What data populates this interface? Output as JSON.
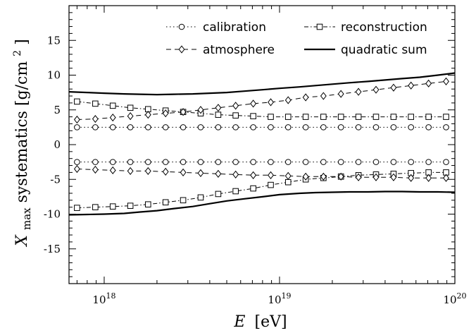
{
  "chart_data": {
    "type": "line",
    "xscale": "log",
    "xlim": [
      6.3e+17,
      1e+20
    ],
    "ylim": [
      -20,
      20
    ],
    "x_ticks": [
      1e+18,
      1e+19,
      1e+20
    ],
    "x_tick_labels": [
      {
        "base": "10",
        "exp": "18"
      },
      {
        "base": "10",
        "exp": "19"
      },
      {
        "base": "10",
        "exp": "20"
      }
    ],
    "y_ticks": [
      15,
      10,
      5,
      0,
      -5,
      -10,
      -15
    ],
    "y_tick_labels": [
      "15",
      "10",
      "5",
      "0",
      "-5",
      "-10",
      "-15"
    ],
    "xlabel": {
      "var": "E",
      "unit": "[eV]"
    },
    "ylabel": {
      "var": "X",
      "sub": "max",
      "text": " systematics [g/cm",
      "sup": "2",
      "end": "]"
    },
    "legend_position": "top-right",
    "legend_columns": 2,
    "series": [
      {
        "name": "calibration",
        "style": "dotted",
        "marker": "circle",
        "branches": [
          {
            "x": [
              7e+17,
              8.9e+17,
              1.12e+18,
              1.41e+18,
              1.78e+18,
              2.24e+18,
              2.82e+18,
              3.55e+18,
              4.47e+18,
              5.62e+18,
              7.08e+18,
              8.91e+18,
              1.12e+19,
              1.41e+19,
              1.78e+19,
              2.24e+19,
              2.82e+19,
              3.55e+19,
              4.47e+19,
              5.62e+19,
              7.08e+19,
              8.91e+19
            ],
            "y": [
              2.5,
              2.5,
              2.5,
              2.5,
              2.5,
              2.5,
              2.5,
              2.5,
              2.5,
              2.5,
              2.5,
              2.5,
              2.5,
              2.5,
              2.5,
              2.5,
              2.5,
              2.5,
              2.5,
              2.5,
              2.5,
              2.5
            ]
          },
          {
            "x": [
              7e+17,
              8.9e+17,
              1.12e+18,
              1.41e+18,
              1.78e+18,
              2.24e+18,
              2.82e+18,
              3.55e+18,
              4.47e+18,
              5.62e+18,
              7.08e+18,
              8.91e+18,
              1.12e+19,
              1.41e+19,
              1.78e+19,
              2.24e+19,
              2.82e+19,
              3.55e+19,
              4.47e+19,
              5.62e+19,
              7.08e+19,
              8.91e+19
            ],
            "y": [
              -2.5,
              -2.5,
              -2.5,
              -2.5,
              -2.5,
              -2.5,
              -2.5,
              -2.5,
              -2.5,
              -2.5,
              -2.5,
              -2.5,
              -2.5,
              -2.5,
              -2.5,
              -2.5,
              -2.5,
              -2.5,
              -2.5,
              -2.5,
              -2.5,
              -2.5
            ]
          }
        ]
      },
      {
        "name": "reconstruction",
        "style": "dashdot",
        "marker": "square",
        "branches": [
          {
            "x": [
              7e+17,
              8.9e+17,
              1.12e+18,
              1.41e+18,
              1.78e+18,
              2.24e+18,
              2.82e+18,
              3.55e+18,
              4.47e+18,
              5.62e+18,
              7.08e+18,
              8.91e+18,
              1.12e+19,
              1.41e+19,
              1.78e+19,
              2.24e+19,
              2.82e+19,
              3.55e+19,
              4.47e+19,
              5.62e+19,
              7.08e+19,
              8.91e+19
            ],
            "y": [
              6.2,
              5.9,
              5.6,
              5.3,
              5.1,
              4.9,
              4.7,
              4.5,
              4.3,
              4.2,
              4.1,
              4.0,
              4.0,
              4.0,
              4.0,
              4.0,
              4.0,
              4.0,
              4.0,
              4.0,
              4.0,
              4.0
            ]
          },
          {
            "x": [
              7e+17,
              8.9e+17,
              1.12e+18,
              1.41e+18,
              1.78e+18,
              2.24e+18,
              2.82e+18,
              3.55e+18,
              4.47e+18,
              5.62e+18,
              7.08e+18,
              8.91e+18,
              1.12e+19,
              1.41e+19,
              1.78e+19,
              2.24e+19,
              2.82e+19,
              3.55e+19,
              4.47e+19,
              5.62e+19,
              7.08e+19,
              8.91e+19
            ],
            "y": [
              -9.1,
              -9.0,
              -8.9,
              -8.8,
              -8.6,
              -8.3,
              -8.0,
              -7.6,
              -7.1,
              -6.7,
              -6.3,
              -5.8,
              -5.4,
              -5.0,
              -4.8,
              -4.6,
              -4.4,
              -4.3,
              -4.2,
              -4.1,
              -4.0,
              -4.0
            ]
          }
        ]
      },
      {
        "name": "atmosphere",
        "style": "dashed",
        "marker": "diamond",
        "branches": [
          {
            "x": [
              7e+17,
              8.9e+17,
              1.12e+18,
              1.41e+18,
              1.78e+18,
              2.24e+18,
              2.82e+18,
              3.55e+18,
              4.47e+18,
              5.62e+18,
              7.08e+18,
              8.91e+18,
              1.12e+19,
              1.41e+19,
              1.78e+19,
              2.24e+19,
              2.82e+19,
              3.55e+19,
              4.47e+19,
              5.62e+19,
              7.08e+19,
              8.91e+19
            ],
            "y": [
              3.6,
              3.7,
              3.9,
              4.1,
              4.3,
              4.5,
              4.7,
              5.0,
              5.3,
              5.6,
              5.9,
              6.1,
              6.4,
              6.8,
              7.0,
              7.3,
              7.6,
              7.9,
              8.2,
              8.5,
              8.8,
              9.1
            ]
          },
          {
            "x": [
              7e+17,
              8.9e+17,
              1.12e+18,
              1.41e+18,
              1.78e+18,
              2.24e+18,
              2.82e+18,
              3.55e+18,
              4.47e+18,
              5.62e+18,
              7.08e+18,
              8.91e+18,
              1.12e+19,
              1.41e+19,
              1.78e+19,
              2.24e+19,
              2.82e+19,
              3.55e+19,
              4.47e+19,
              5.62e+19,
              7.08e+19,
              8.91e+19
            ],
            "y": [
              -3.5,
              -3.6,
              -3.7,
              -3.8,
              -3.8,
              -3.9,
              -4.0,
              -4.1,
              -4.2,
              -4.3,
              -4.4,
              -4.4,
              -4.5,
              -4.6,
              -4.6,
              -4.6,
              -4.7,
              -4.7,
              -4.7,
              -4.8,
              -4.8,
              -4.8
            ]
          }
        ]
      },
      {
        "name": "quadratic sum",
        "style": "solid",
        "marker": "none",
        "branches": [
          {
            "x": [
              6.3e+17,
              8e+17,
              1e+18,
              1.3e+18,
              1.6e+18,
              2e+18,
              2.5e+18,
              3.2e+18,
              4e+18,
              5e+18,
              6.3e+18,
              8e+18,
              1e+19,
              1.3e+19,
              1.6e+19,
              2e+19,
              2.5e+19,
              3.2e+19,
              4e+19,
              5e+19,
              6.3e+19,
              8e+19,
              1e+20
            ],
            "y": [
              7.6,
              7.5,
              7.4,
              7.3,
              7.25,
              7.2,
              7.25,
              7.3,
              7.4,
              7.5,
              7.7,
              7.9,
              8.1,
              8.3,
              8.5,
              8.7,
              8.9,
              9.1,
              9.3,
              9.5,
              9.7,
              10.0,
              10.3
            ]
          },
          {
            "x": [
              6.3e+17,
              8e+17,
              1e+18,
              1.3e+18,
              1.6e+18,
              2e+18,
              2.5e+18,
              3.2e+18,
              4e+18,
              5e+18,
              6.3e+18,
              8e+18,
              1e+19,
              1.3e+19,
              1.6e+19,
              2e+19,
              2.5e+19,
              3.2e+19,
              4e+19,
              5e+19,
              6.3e+19,
              8e+19,
              1e+20
            ],
            "y": [
              -10.1,
              -10.05,
              -10.0,
              -9.9,
              -9.7,
              -9.5,
              -9.2,
              -8.9,
              -8.5,
              -8.1,
              -7.8,
              -7.5,
              -7.2,
              -7.0,
              -6.9,
              -6.85,
              -6.8,
              -6.8,
              -6.75,
              -6.75,
              -6.8,
              -6.8,
              -6.85
            ]
          }
        ]
      }
    ]
  }
}
